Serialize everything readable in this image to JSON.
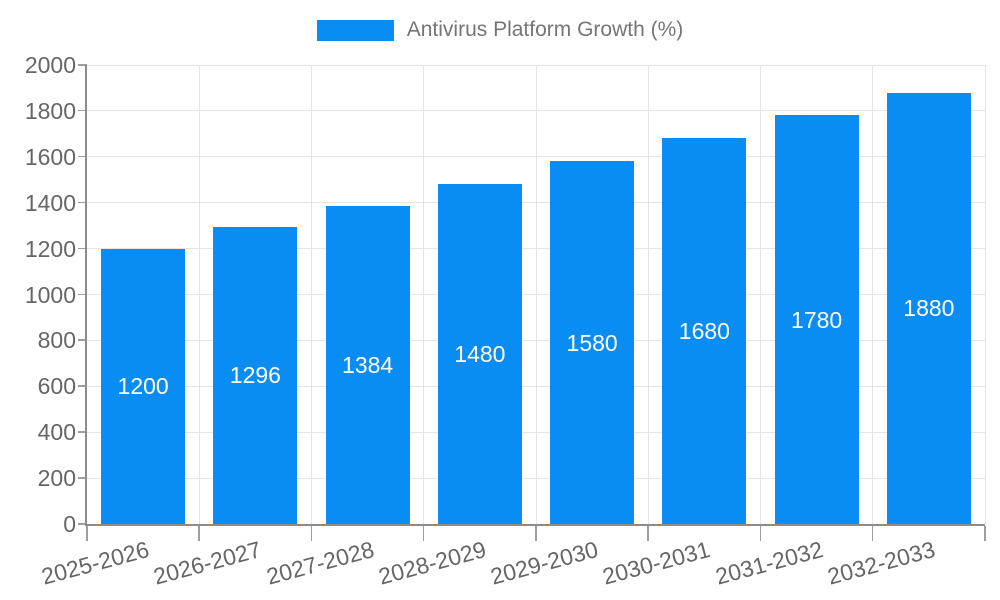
{
  "legend": {
    "label": "Antivirus Platform Growth (%)"
  },
  "chart_data": {
    "type": "bar",
    "title": "Antivirus Platform Growth (%)",
    "categories": [
      "2025-2026",
      "2026-2027",
      "2027-2028",
      "2028-2029",
      "2029-2030",
      "2030-2031",
      "2031-2032",
      "2032-2033"
    ],
    "values": [
      1200,
      1296,
      1384,
      1480,
      1580,
      1680,
      1780,
      1880
    ],
    "series_name": "Antivirus Platform Growth (%)",
    "xlabel": "",
    "ylabel": "",
    "ylim": [
      0,
      2000
    ],
    "ytick_step": 200,
    "ytick_labels": [
      "0",
      "200",
      "400",
      "600",
      "800",
      "1000",
      "1200",
      "1400",
      "1600",
      "1800",
      "2000"
    ],
    "grid": true,
    "legend_position": "top-center",
    "value_label_position": "inside-center",
    "colors": {
      "bar": "#0a8df2",
      "value_label": "#ffffff",
      "axis_label": "#666666",
      "legend_text": "#757575",
      "grid": "#e5e5e5",
      "axis_line": "#8c8c8c",
      "tick": "#9e9e9e"
    }
  }
}
